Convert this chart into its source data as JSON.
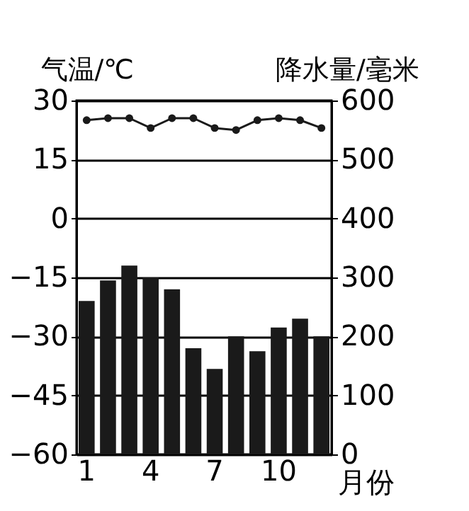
{
  "chart_data": {
    "type": "bar",
    "ylabel": "气温/℃",
    "y2label": "降水量/毫米",
    "xlabel": "月份",
    "categories": [
      "1",
      null,
      null,
      "4",
      null,
      null,
      "7",
      null,
      null,
      "10",
      null,
      null
    ],
    "series": [
      {
        "axis": "y2",
        "color": "#1a1a1a",
        "values": [
          260,
          295,
          320,
          300,
          280,
          180,
          145,
          200,
          175,
          215,
          230,
          200
        ]
      },
      {
        "type": "line",
        "axis": "y",
        "color": "#1a1a1a",
        "marker": "circle",
        "values": [
          25,
          25.5,
          25.5,
          23,
          25.5,
          25.5,
          23,
          22.5,
          25,
          25.5,
          25,
          23
        ]
      }
    ],
    "ylim": [
      -60,
      30
    ],
    "yticks": [
      -60,
      -45,
      -30,
      -15,
      0,
      15,
      30
    ],
    "y2lim": [
      0,
      600
    ],
    "y2ticks": [
      0,
      100,
      200,
      300,
      400,
      500,
      600
    ],
    "grid": "y"
  }
}
